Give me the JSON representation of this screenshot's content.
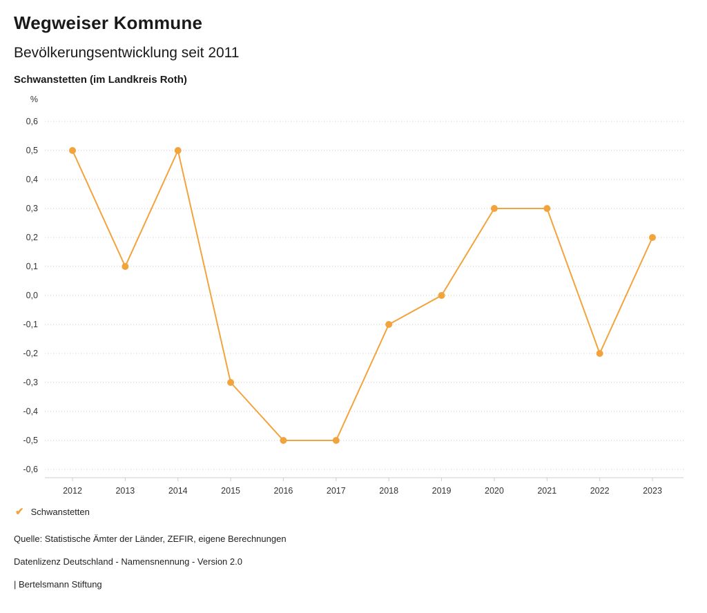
{
  "header": {
    "title": "Wegweiser Kommune",
    "subtitle": "Bevölkerungsentwicklung seit 2011",
    "region": "Schwanstetten (im Landkreis Roth)"
  },
  "chart_data": {
    "type": "line",
    "title": "Bevölkerungsentwicklung seit 2011",
    "region": "Schwanstetten (im Landkreis Roth)",
    "unit": "%",
    "categories": [
      "2012",
      "2013",
      "2014",
      "2015",
      "2016",
      "2017",
      "2018",
      "2019",
      "2020",
      "2021",
      "2022",
      "2023"
    ],
    "series": [
      {
        "name": "Schwanstetten",
        "color": "#F2A33C",
        "values": [
          0.5,
          0.1,
          0.5,
          -0.3,
          -0.5,
          -0.5,
          -0.1,
          0.0,
          0.3,
          0.3,
          -0.2,
          0.2
        ]
      }
    ],
    "ylim": [
      -0.6,
      0.6
    ],
    "yticks": [
      0.6,
      0.5,
      0.4,
      0.3,
      0.2,
      0.1,
      0.0,
      -0.1,
      -0.2,
      -0.3,
      -0.4,
      -0.5,
      -0.6
    ],
    "grid": "horizontal-dotted",
    "decimal_separator": ",",
    "legend_position": "bottom-left"
  },
  "legend": {
    "items": [
      {
        "label": "Schwanstetten",
        "color": "#F2A33C",
        "icon": "check"
      }
    ]
  },
  "footer": {
    "source": "Quelle: Statistische Ämter der Länder, ZEFIR, eigene Berechnungen",
    "license": "Datenlizenz Deutschland - Namensnennung - Version 2.0",
    "attribution": "| Bertelsmann Stiftung"
  }
}
